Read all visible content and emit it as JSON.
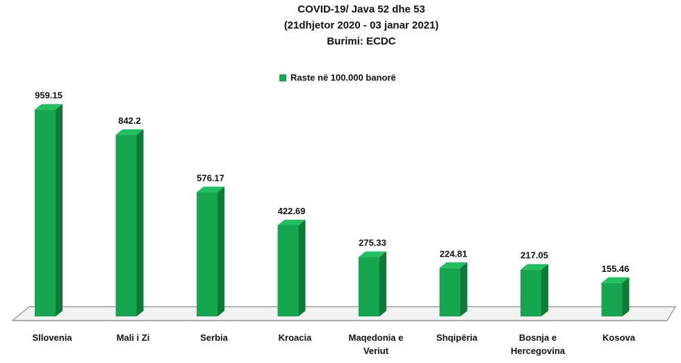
{
  "chart_data": {
    "type": "bar",
    "title": "COVID-19/ Java 52 dhe 53",
    "subtitle": "(21dhjetor 2020 - 03 janar 2021)",
    "source": "Burimi: ECDC",
    "legend": "Raste në 100.000 banorë",
    "legend_position": "top-center",
    "categories": [
      [
        "Sllovenia"
      ],
      [
        "Mali i Zi"
      ],
      [
        "Serbia"
      ],
      [
        "Kroacia"
      ],
      [
        "Maqedonia e",
        "Veriut"
      ],
      [
        "Shqipëria"
      ],
      [
        "Bosnja e",
        "Hercegovina"
      ],
      [
        "Kosova"
      ]
    ],
    "values": [
      959.15,
      842.2,
      576.17,
      422.69,
      275.33,
      224.81,
      217.05,
      155.46
    ],
    "value_labels": [
      "959.15",
      "842.2",
      "576.17",
      "422.69",
      "275.33",
      "224.81",
      "217.05",
      "155.46"
    ],
    "ylim": [
      0,
      1000
    ],
    "grid": false,
    "colors": {
      "bar_front": "#16a650",
      "bar_side": "#0d7a36",
      "bar_top": "#1fc05f",
      "floor": "#f2f2f2",
      "floor_edge": "#8c8c8c"
    }
  }
}
